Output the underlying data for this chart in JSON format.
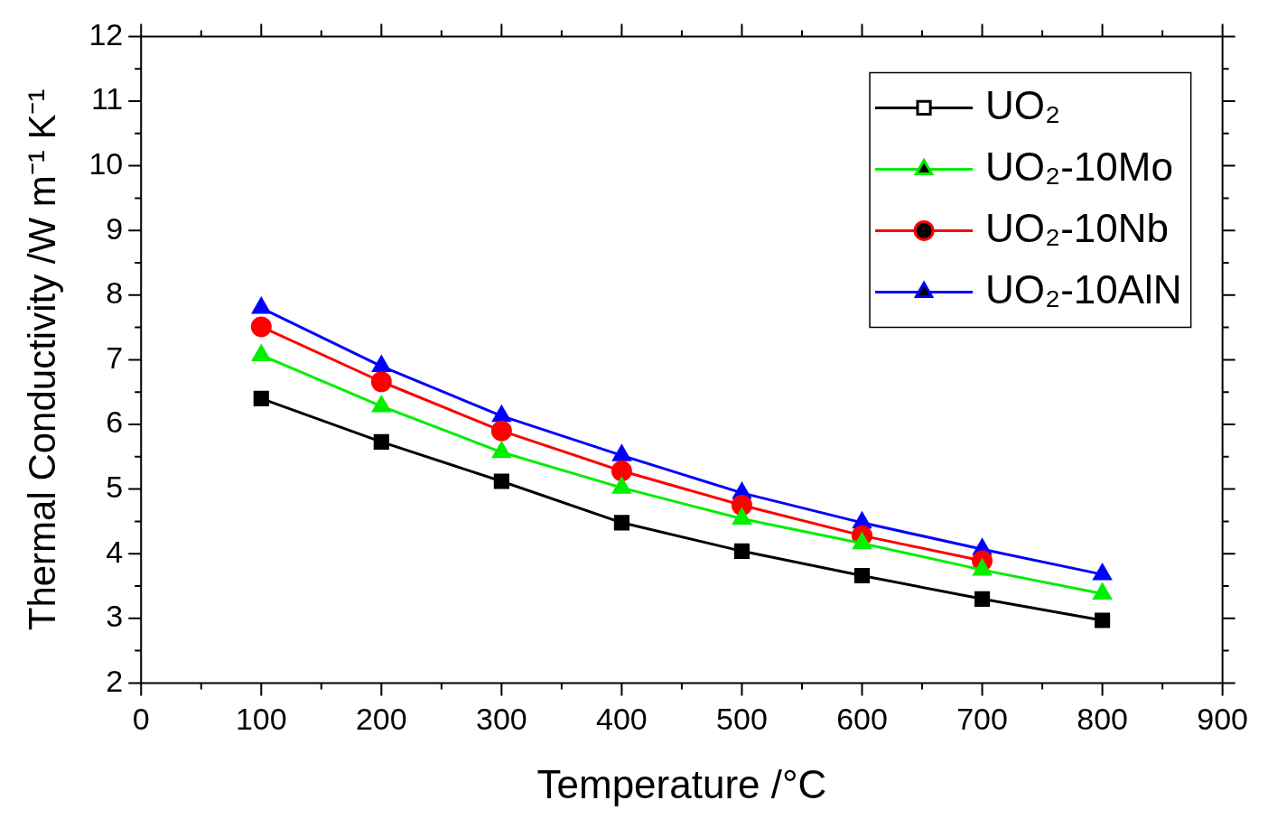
{
  "chart_data": {
    "type": "line",
    "xlabel": "Temperature /°C",
    "ylabel": "Thermal Conductivity /W m⁻¹ K⁻¹",
    "x": [
      100,
      200,
      300,
      400,
      500,
      600,
      700,
      800
    ],
    "series": [
      {
        "name": "UO₂",
        "color": "#000000",
        "marker": "square",
        "values": [
          6.4,
          5.73,
          5.12,
          4.48,
          4.04,
          3.66,
          3.3,
          2.97
        ]
      },
      {
        "name": "UO₂-10Mo",
        "color": "#00ee00",
        "marker": "triangle",
        "values": [
          7.07,
          6.28,
          5.57,
          5.02,
          4.54,
          4.16,
          3.75,
          3.38
        ]
      },
      {
        "name": "UO₂-10Nb",
        "color": "#ff0000",
        "marker": "circle",
        "values": [
          7.51,
          6.66,
          5.9,
          5.28,
          4.75,
          4.28,
          3.89,
          null
        ]
      },
      {
        "name": "UO₂-10AlN",
        "color": "#0000ff",
        "marker": "triangle",
        "values": [
          7.8,
          6.9,
          6.13,
          5.52,
          4.94,
          4.48,
          4.07,
          3.68
        ]
      }
    ],
    "xlim": [
      0,
      900
    ],
    "xticks": [
      0,
      {
        "value": 50,
        "label": null
      },
      100,
      {
        "value": 150,
        "label": null
      },
      200,
      {
        "value": 250,
        "label": null
      },
      300,
      {
        "value": 350,
        "label": null
      },
      400,
      {
        "value": 450,
        "label": null
      },
      500,
      {
        "value": 550,
        "label": null
      },
      600,
      {
        "value": 650,
        "label": null
      },
      700,
      {
        "value": 750,
        "label": null
      },
      800,
      {
        "value": 850,
        "label": null
      },
      900
    ],
    "ylim": [
      2,
      12
    ],
    "yticks": [
      2,
      {
        "value": 2.5,
        "label": null
      },
      3,
      {
        "value": 3.5,
        "label": null
      },
      4,
      {
        "value": 4.5,
        "label": null
      },
      5,
      {
        "value": 5.5,
        "label": null
      },
      6,
      {
        "value": 6.5,
        "label": null
      },
      7,
      {
        "value": 7.5,
        "label": null
      },
      8,
      {
        "value": 8.5,
        "label": null
      },
      9,
      {
        "value": 9.5,
        "label": null
      },
      10,
      {
        "value": 10.5,
        "label": null
      },
      11,
      {
        "value": 11.5,
        "label": null
      },
      12
    ],
    "grid": false,
    "legend": "top right",
    "line_style": "solid"
  }
}
